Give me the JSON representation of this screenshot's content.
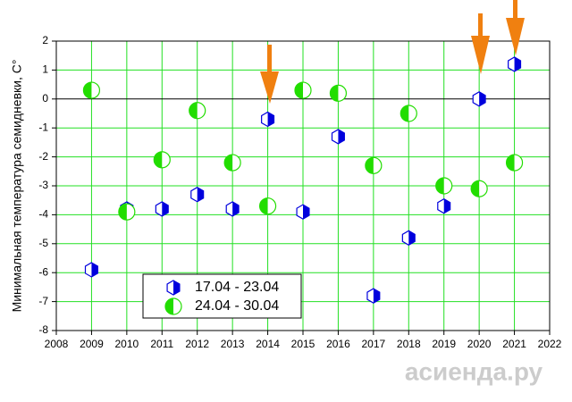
{
  "chart_data": {
    "type": "scatter",
    "y_label": "Минимальная температура семидневки, С°",
    "xlim": [
      2008,
      2022
    ],
    "xticks": [
      2008,
      2009,
      2010,
      2011,
      2012,
      2013,
      2014,
      2015,
      2016,
      2017,
      2018,
      2019,
      2020,
      2021,
      2022
    ],
    "ylim": [
      -8,
      2
    ],
    "yticks": [
      -8,
      -7,
      -6,
      -5,
      -4,
      -3,
      -2,
      -1,
      0,
      1,
      2
    ],
    "grid": true,
    "legend_position": "lower center",
    "series": [
      {
        "name": "17.04 - 23.04",
        "color": "#0000dd",
        "marker": "hexagon",
        "x": [
          2009,
          2010,
          2011,
          2012,
          2013,
          2014,
          2015,
          2016,
          2017,
          2018,
          2019,
          2020,
          2021
        ],
        "values": [
          -5.9,
          -3.8,
          -3.8,
          -3.3,
          -3.8,
          -0.7,
          -3.9,
          -1.3,
          -6.8,
          -4.8,
          -3.7,
          0.0,
          1.2
        ]
      },
      {
        "name": "24.04 - 30.04",
        "color": "#22dd00",
        "marker": "circle",
        "x": [
          2009,
          2010,
          2011,
          2012,
          2013,
          2014,
          2015,
          2016,
          2017,
          2018,
          2019,
          2020,
          2021
        ],
        "values": [
          0.3,
          -3.9,
          -2.1,
          -0.4,
          -2.2,
          -3.7,
          0.3,
          0.2,
          -2.3,
          -0.5,
          -3.0,
          -3.1,
          -2.2
        ]
      }
    ]
  },
  "watermark": "асиенда.ру"
}
